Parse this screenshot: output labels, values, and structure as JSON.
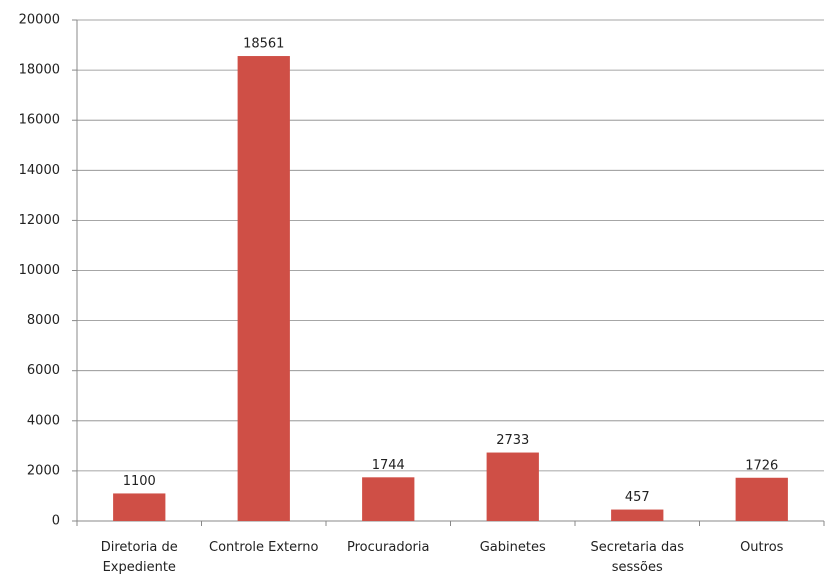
{
  "chart_data": {
    "type": "bar",
    "categories": [
      "Diretoria de Expediente",
      "Controle Externo",
      "Procuradoria",
      "Gabinetes",
      "Secretaria das sessões",
      "Outros"
    ],
    "values": [
      1100,
      18561,
      1744,
      2733,
      457,
      1726
    ],
    "color": "#cf4f46",
    "ylim": [
      0,
      20000
    ],
    "yticks": [
      0,
      2000,
      4000,
      6000,
      8000,
      10000,
      12000,
      14000,
      16000,
      18000,
      20000
    ],
    "grid": true
  }
}
